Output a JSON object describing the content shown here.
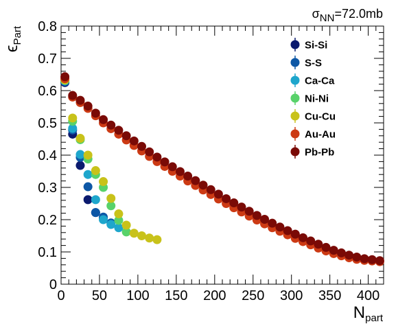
{
  "chart_data": {
    "type": "scatter",
    "annotation": {
      "main": "σ",
      "sub": "NN",
      "rest": "=72.0mb"
    },
    "xlabel": {
      "main": "N",
      "sub": "part"
    },
    "ylabel": {
      "main": "ϵ",
      "sub": "Part"
    },
    "xlim": [
      0,
      420
    ],
    "ylim": [
      0,
      0.8
    ],
    "xticks": [
      0,
      50,
      100,
      150,
      200,
      250,
      300,
      350,
      400
    ],
    "yticks": [
      0,
      0.1,
      0.2,
      0.3,
      0.4,
      0.5,
      0.6,
      0.7,
      0.8
    ],
    "ytick_labels": [
      "0",
      "0.1",
      "0.2",
      "0.3",
      "0.4",
      "0.5",
      "0.6",
      "0.7",
      "0.8"
    ],
    "legend_position": "top-right",
    "series": [
      {
        "name": "Si-Si",
        "color": "#0b1a6e",
        "x": [
          5,
          15,
          25,
          35,
          45,
          55
        ],
        "y": [
          0.625,
          0.465,
          0.368,
          0.262,
          0.222,
          0.205
        ]
      },
      {
        "name": "S-S",
        "color": "#0d57a6",
        "x": [
          5,
          15,
          25,
          35,
          45,
          55,
          65
        ],
        "y": [
          0.628,
          0.478,
          0.393,
          0.302,
          0.222,
          0.208,
          0.19
        ]
      },
      {
        "name": "Ca-Ca",
        "color": "#1ea6cc",
        "x": [
          5,
          15,
          25,
          35,
          45,
          55,
          65,
          75
        ],
        "y": [
          0.63,
          0.483,
          0.402,
          0.34,
          0.262,
          0.2,
          0.185,
          0.175
        ]
      },
      {
        "name": "Ni-Ni",
        "color": "#58d26a",
        "x": [
          5,
          15,
          25,
          35,
          45,
          55,
          65,
          75,
          85
        ],
        "y": [
          0.632,
          0.505,
          0.448,
          0.388,
          0.34,
          0.3,
          0.243,
          0.198,
          0.162
        ]
      },
      {
        "name": "Cu-Cu",
        "color": "#c8c21a",
        "x": [
          5,
          15,
          25,
          35,
          45,
          55,
          65,
          75,
          85,
          95,
          105,
          115,
          125
        ],
        "y": [
          0.633,
          0.515,
          0.452,
          0.4,
          0.352,
          0.318,
          0.266,
          0.218,
          0.183,
          0.158,
          0.15,
          0.143,
          0.138
        ]
      },
      {
        "name": "Au-Au",
        "color": "#cc3a14",
        "x": [
          5,
          15,
          25,
          35,
          45,
          55,
          65,
          75,
          85,
          95,
          105,
          115,
          125,
          135,
          145,
          155,
          165,
          175,
          185,
          195,
          205,
          215,
          225,
          235,
          245,
          255,
          265,
          275,
          285,
          295,
          305,
          315,
          325,
          335,
          345,
          355,
          365,
          375,
          385,
          395,
          405,
          415
        ],
        "y": [
          0.637,
          0.58,
          0.563,
          0.545,
          0.522,
          0.5,
          0.482,
          0.465,
          0.447,
          0.43,
          0.413,
          0.396,
          0.38,
          0.365,
          0.35,
          0.335,
          0.32,
          0.306,
          0.292,
          0.278,
          0.264,
          0.25,
          0.237,
          0.224,
          0.211,
          0.199,
          0.187,
          0.175,
          0.164,
          0.153,
          0.142,
          0.132,
          0.122,
          0.112,
          0.103,
          0.095,
          0.088,
          0.082,
          0.077,
          0.074,
          0.072,
          0.07
        ]
      },
      {
        "name": "Pb-Pb",
        "color": "#7a0a06",
        "x": [
          5,
          15,
          25,
          35,
          45,
          55,
          65,
          75,
          85,
          95,
          105,
          115,
          125,
          135,
          145,
          155,
          165,
          175,
          185,
          195,
          205,
          215,
          225,
          235,
          245,
          255,
          265,
          275,
          285,
          295,
          305,
          315,
          325,
          335,
          345,
          355,
          365,
          375,
          385,
          395,
          405,
          415
        ],
        "y": [
          0.643,
          0.585,
          0.57,
          0.552,
          0.53,
          0.51,
          0.493,
          0.477,
          0.46,
          0.444,
          0.427,
          0.41,
          0.394,
          0.379,
          0.364,
          0.349,
          0.335,
          0.321,
          0.307,
          0.293,
          0.279,
          0.265,
          0.252,
          0.239,
          0.226,
          0.213,
          0.201,
          0.189,
          0.177,
          0.166,
          0.155,
          0.144,
          0.134,
          0.124,
          0.114,
          0.105,
          0.097,
          0.09,
          0.084,
          0.079,
          0.076,
          0.073
        ]
      }
    ]
  }
}
